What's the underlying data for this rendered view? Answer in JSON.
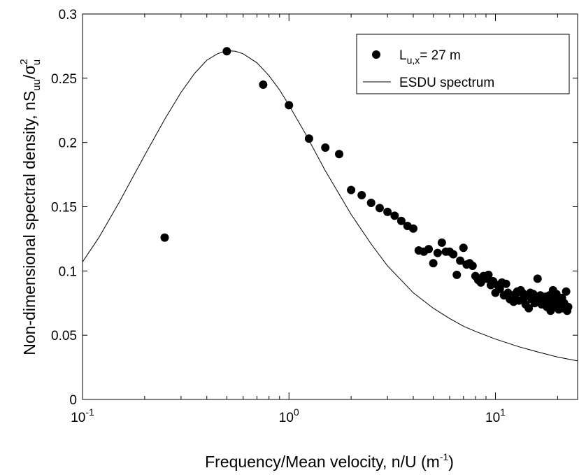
{
  "chart_data": {
    "type": "scatter",
    "xscale": "log",
    "xlim": [
      0.1,
      25
    ],
    "ylim": [
      0,
      0.3
    ],
    "grid": false,
    "legend_position": "top-right",
    "xlabel": {
      "main": "Frequency/Mean velocity, n/U (m",
      "sup": "-1",
      "close": ")"
    },
    "ylabel": {
      "main": "Non-dimensional spectral density, nS",
      "sub1": "uu",
      "slash": "/σ",
      "sup": "2",
      "sub2": "u"
    },
    "x_ticks": [
      {
        "value": 0.1,
        "base": "10",
        "exp": "-1"
      },
      {
        "value": 1,
        "base": "10",
        "exp": "0"
      },
      {
        "value": 10,
        "base": "10",
        "exp": "1"
      }
    ],
    "y_ticks": [
      {
        "value": 0,
        "label": "0"
      },
      {
        "value": 0.05,
        "label": "0.05"
      },
      {
        "value": 0.1,
        "label": "0.1"
      },
      {
        "value": 0.15,
        "label": "0.15"
      },
      {
        "value": 0.2,
        "label": "0.2"
      },
      {
        "value": 0.25,
        "label": "0.25"
      },
      {
        "value": 0.3,
        "label": "0.3"
      }
    ],
    "legend": [
      {
        "key": "measured",
        "main": "L",
        "sub": "u,x",
        "rest": "= 27 m",
        "marker": "dot"
      },
      {
        "key": "esdu",
        "main": "ESDU spectrum",
        "marker": "line"
      }
    ],
    "series": [
      {
        "key": "measured",
        "type": "scatter",
        "color": "#000000",
        "points": [
          [
            0.25,
            0.126
          ],
          [
            0.5,
            0.271
          ],
          [
            0.75,
            0.245
          ],
          [
            1.0,
            0.229
          ],
          [
            1.25,
            0.203
          ],
          [
            1.5,
            0.196
          ],
          [
            1.75,
            0.191
          ],
          [
            2.0,
            0.163
          ],
          [
            2.25,
            0.159
          ],
          [
            2.5,
            0.153
          ],
          [
            2.75,
            0.149
          ],
          [
            3.0,
            0.146
          ],
          [
            3.25,
            0.143
          ],
          [
            3.5,
            0.139
          ],
          [
            3.75,
            0.135
          ],
          [
            4.0,
            0.133
          ],
          [
            4.25,
            0.116
          ],
          [
            4.5,
            0.115
          ],
          [
            4.75,
            0.117
          ],
          [
            5.0,
            0.106
          ],
          [
            5.25,
            0.114
          ],
          [
            5.5,
            0.122
          ],
          [
            5.75,
            0.115
          ],
          [
            6.0,
            0.115
          ],
          [
            6.25,
            0.113
          ],
          [
            6.5,
            0.097
          ],
          [
            6.75,
            0.108
          ],
          [
            7.0,
            0.118
          ],
          [
            7.25,
            0.105
          ],
          [
            7.5,
            0.106
          ],
          [
            7.75,
            0.104
          ],
          [
            8.0,
            0.096
          ],
          [
            8.25,
            0.093
          ],
          [
            8.5,
            0.091
          ],
          [
            8.75,
            0.096
          ],
          [
            9.0,
            0.094
          ],
          [
            9.25,
            0.097
          ],
          [
            9.5,
            0.089
          ],
          [
            9.75,
            0.092
          ],
          [
            10.0,
            0.083
          ],
          [
            10.25,
            0.089
          ],
          [
            10.5,
            0.086
          ],
          [
            10.75,
            0.091
          ],
          [
            11.0,
            0.081
          ],
          [
            11.25,
            0.09
          ],
          [
            11.5,
            0.083
          ],
          [
            11.75,
            0.078
          ],
          [
            12.0,
            0.08
          ],
          [
            12.25,
            0.076
          ],
          [
            12.5,
            0.082
          ],
          [
            12.75,
            0.084
          ],
          [
            13.0,
            0.077
          ],
          [
            13.25,
            0.085
          ],
          [
            13.5,
            0.083
          ],
          [
            13.75,
            0.079
          ],
          [
            14.0,
            0.074
          ],
          [
            14.25,
            0.081
          ],
          [
            14.5,
            0.071
          ],
          [
            14.75,
            0.083
          ],
          [
            15.0,
            0.078
          ],
          [
            15.25,
            0.082
          ],
          [
            15.5,
            0.075
          ],
          [
            15.75,
            0.08
          ],
          [
            16.0,
            0.094
          ],
          [
            16.25,
            0.077
          ],
          [
            16.5,
            0.081
          ],
          [
            16.75,
            0.074
          ],
          [
            17.0,
            0.079
          ],
          [
            17.25,
            0.076
          ],
          [
            17.5,
            0.08
          ],
          [
            17.75,
            0.072
          ],
          [
            18.0,
            0.077
          ],
          [
            18.25,
            0.081
          ],
          [
            18.5,
            0.069
          ],
          [
            18.75,
            0.075
          ],
          [
            19.0,
            0.085
          ],
          [
            19.25,
            0.079
          ],
          [
            19.5,
            0.072
          ],
          [
            19.75,
            0.082
          ],
          [
            20.0,
            0.074
          ],
          [
            20.25,
            0.07
          ],
          [
            20.5,
            0.076
          ],
          [
            20.75,
            0.072
          ],
          [
            21.0,
            0.079
          ],
          [
            21.25,
            0.071
          ],
          [
            21.5,
            0.075
          ],
          [
            21.75,
            0.073
          ],
          [
            22.0,
            0.084
          ],
          [
            22.25,
            0.069
          ],
          [
            22.5,
            0.072
          ]
        ]
      },
      {
        "key": "esdu",
        "type": "line",
        "color": "#000000",
        "points": [
          [
            0.1,
            0.107
          ],
          [
            0.12,
            0.126
          ],
          [
            0.15,
            0.153
          ],
          [
            0.2,
            0.19
          ],
          [
            0.25,
            0.218
          ],
          [
            0.3,
            0.239
          ],
          [
            0.35,
            0.254
          ],
          [
            0.4,
            0.264
          ],
          [
            0.45,
            0.269
          ],
          [
            0.5,
            0.2715
          ],
          [
            0.55,
            0.271
          ],
          [
            0.6,
            0.269
          ],
          [
            0.7,
            0.262
          ],
          [
            0.8,
            0.252
          ],
          [
            0.9,
            0.241
          ],
          [
            1.0,
            0.229
          ],
          [
            1.2,
            0.207
          ],
          [
            1.5,
            0.178
          ],
          [
            2.0,
            0.144
          ],
          [
            2.5,
            0.121
          ],
          [
            3.0,
            0.104
          ],
          [
            4.0,
            0.083
          ],
          [
            5.0,
            0.071
          ],
          [
            6.0,
            0.063
          ],
          [
            7.0,
            0.057
          ],
          [
            8.0,
            0.053
          ],
          [
            10.0,
            0.047
          ],
          [
            13.0,
            0.041
          ],
          [
            16.0,
            0.037
          ],
          [
            20.0,
            0.033
          ],
          [
            25.0,
            0.03
          ]
        ]
      }
    ]
  }
}
